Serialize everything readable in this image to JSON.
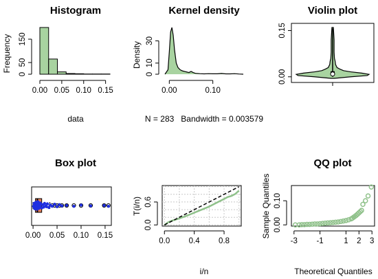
{
  "colors": {
    "green_fill": "#a8d3a0",
    "green_line": "#8fc18a",
    "box_fill": "#e07c5a",
    "points": "#1f2fe0",
    "grid": "#c8c8c8"
  },
  "chart_data": [
    {
      "type": "bar",
      "title": "Histogram",
      "xlabel": "data",
      "ylabel": "Frequency",
      "bin_edges": [
        0.0,
        0.02,
        0.04,
        0.06,
        0.08,
        0.1,
        0.12,
        0.14,
        0.16
      ],
      "values": [
        200,
        65,
        10,
        3,
        2,
        1,
        1,
        1
      ],
      "xticks": [
        "0.00",
        "0.05",
        "0.10",
        "0.15"
      ],
      "xtick_values": [
        0.0,
        0.05,
        0.1,
        0.15
      ],
      "yticks": [
        "0",
        "50",
        "150"
      ],
      "ytick_values": [
        0,
        50,
        150
      ],
      "xlim": [
        0.0,
        0.16
      ],
      "ylim": [
        0,
        200
      ]
    },
    {
      "type": "area",
      "title": "Kernel density",
      "xlabel": "N = 283   Bandwidth = 0.003579",
      "ylabel": "Density",
      "x": [
        -0.01,
        -0.003,
        0.0,
        0.003,
        0.006,
        0.009,
        0.012,
        0.016,
        0.02,
        0.025,
        0.03,
        0.035,
        0.04,
        0.045,
        0.05,
        0.055,
        0.06,
        0.07,
        0.08,
        0.09,
        0.1,
        0.11,
        0.12,
        0.13,
        0.14,
        0.15,
        0.16,
        0.17
      ],
      "y": [
        0,
        4,
        20,
        38,
        42,
        35,
        22,
        10,
        6,
        4,
        3,
        2.5,
        2,
        1.5,
        2.5,
        1.5,
        0.8,
        0.5,
        0.3,
        0.5,
        0.4,
        0.4,
        0.7,
        0.3,
        0.3,
        0.5,
        0.2,
        0
      ],
      "xticks": [
        "0.00",
        "0.10"
      ],
      "xtick_values": [
        0.0,
        0.1
      ],
      "yticks": [
        "0",
        "10",
        "30"
      ],
      "ytick_values": [
        0,
        10,
        30
      ],
      "xlim": [
        -0.01,
        0.17
      ],
      "ylim": [
        0,
        42
      ]
    },
    {
      "type": "violin",
      "title": "Violin plot",
      "yticks": [
        "0.00",
        "0.15"
      ],
      "ytick_values": [
        0.0,
        0.15
      ],
      "ylim": [
        -0.005,
        0.16
      ],
      "profile_y": [
        -0.005,
        0.0,
        0.004,
        0.008,
        0.012,
        0.016,
        0.02,
        0.025,
        0.03,
        0.04,
        0.05,
        0.06,
        0.08,
        0.1,
        0.12,
        0.14,
        0.16
      ],
      "profile_w": [
        0.05,
        0.5,
        0.95,
        1.0,
        0.8,
        0.5,
        0.3,
        0.2,
        0.12,
        0.08,
        0.07,
        0.05,
        0.04,
        0.04,
        0.04,
        0.03,
        0.02
      ],
      "q1": 0.005,
      "median": 0.009,
      "q3": 0.018,
      "whisker_low": 0.0,
      "whisker_high": 0.157
    },
    {
      "type": "box",
      "title": "Box plot",
      "xticks": [
        "0.00",
        "0.05",
        "0.10",
        "0.15"
      ],
      "xtick_values": [
        0.0,
        0.05,
        0.1,
        0.15
      ],
      "xlim": [
        -0.003,
        0.163
      ],
      "whisker_low": 0.0,
      "q1": 0.005,
      "median": 0.009,
      "q3": 0.018,
      "whisker_high": 0.035,
      "outliers": [
        0.04,
        0.045,
        0.05,
        0.055,
        0.06,
        0.07,
        0.085,
        0.1,
        0.12,
        0.148,
        0.157
      ],
      "points_x": [
        0.001,
        0.002,
        0.003,
        0.004,
        0.005,
        0.006,
        0.007,
        0.008,
        0.009,
        0.01,
        0.011,
        0.012,
        0.013,
        0.014,
        0.016,
        0.018,
        0.02,
        0.022,
        0.024,
        0.026,
        0.028,
        0.03,
        0.033,
        0.036,
        0.04,
        0.045,
        0.05,
        0.055,
        0.06,
        0.07,
        0.085,
        0.1,
        0.12,
        0.148,
        0.157,
        0.004,
        0.006,
        0.008,
        0.01,
        0.012,
        0.015
      ],
      "points_jitter": [
        0.2,
        -0.5,
        0.7,
        -0.2,
        0.4,
        -0.7,
        0.1,
        0.6,
        -0.4,
        0.3,
        -0.1,
        0.5,
        -0.6,
        0.2,
        -0.3,
        0.6,
        -0.2,
        0.4,
        -0.5,
        0.1,
        0.3,
        -0.4,
        0.5,
        -0.1,
        0.2,
        -0.3,
        0.3,
        -0.2,
        0.1,
        0.0,
        0.2,
        -0.1,
        0.1,
        0.0,
        0.2,
        0.8,
        -0.8,
        0.9,
        -0.9,
        0.7,
        -0.6
      ]
    },
    {
      "type": "line",
      "title": "",
      "xlabel": "i/n",
      "ylabel": "T(i/n)",
      "x": [
        0.0,
        0.05,
        0.1,
        0.15,
        0.2,
        0.3,
        0.4,
        0.5,
        0.6,
        0.7,
        0.8,
        0.85,
        0.9,
        0.95,
        1.0
      ],
      "y": [
        0.0,
        0.07,
        0.11,
        0.14,
        0.17,
        0.24,
        0.32,
        0.4,
        0.48,
        0.58,
        0.68,
        0.73,
        0.76,
        0.81,
        0.9
      ],
      "reference_line": [
        [
          0,
          0
        ],
        [
          1,
          1
        ]
      ],
      "xticks": [
        "0.0",
        "0.4",
        "0.8"
      ],
      "xtick_values": [
        0.0,
        0.4,
        0.8
      ],
      "yticks": [
        "0.0",
        "0.6"
      ],
      "ytick_values": [
        0.0,
        0.6
      ],
      "xlim": [
        -0.03,
        1.03
      ],
      "ylim": [
        -0.03,
        1.03
      ],
      "grid": true
    },
    {
      "type": "scatter",
      "title": "QQ plot",
      "xlabel": "Theoretical Quantiles",
      "ylabel": "Sample Quantiles",
      "x": [
        -2.9,
        -2.6,
        -2.4,
        -2.2,
        -2.0,
        -1.8,
        -1.6,
        -1.4,
        -1.2,
        -1.0,
        -0.8,
        -0.6,
        -0.4,
        -0.2,
        0.0,
        0.2,
        0.4,
        0.6,
        0.8,
        1.0,
        1.2,
        1.4,
        1.5,
        1.6,
        1.7,
        1.8,
        1.9,
        2.0,
        2.1,
        2.2,
        2.3,
        2.5,
        2.7,
        2.95
      ],
      "y": [
        0.0,
        0.0,
        0.001,
        0.001,
        0.002,
        0.002,
        0.003,
        0.004,
        0.004,
        0.005,
        0.006,
        0.007,
        0.008,
        0.009,
        0.01,
        0.011,
        0.012,
        0.014,
        0.016,
        0.018,
        0.021,
        0.025,
        0.028,
        0.032,
        0.036,
        0.04,
        0.045,
        0.05,
        0.055,
        0.06,
        0.085,
        0.1,
        0.12,
        0.157
      ],
      "xticks": [
        "-3",
        "-1",
        "1",
        "2",
        "3"
      ],
      "xtick_values": [
        -3,
        -1,
        1,
        2,
        3
      ],
      "yticks": [
        "0.00",
        "0.10"
      ],
      "ytick_values": [
        0.0,
        0.1
      ],
      "xlim": [
        -3.2,
        3.2
      ],
      "ylim": [
        -0.005,
        0.163
      ]
    }
  ]
}
